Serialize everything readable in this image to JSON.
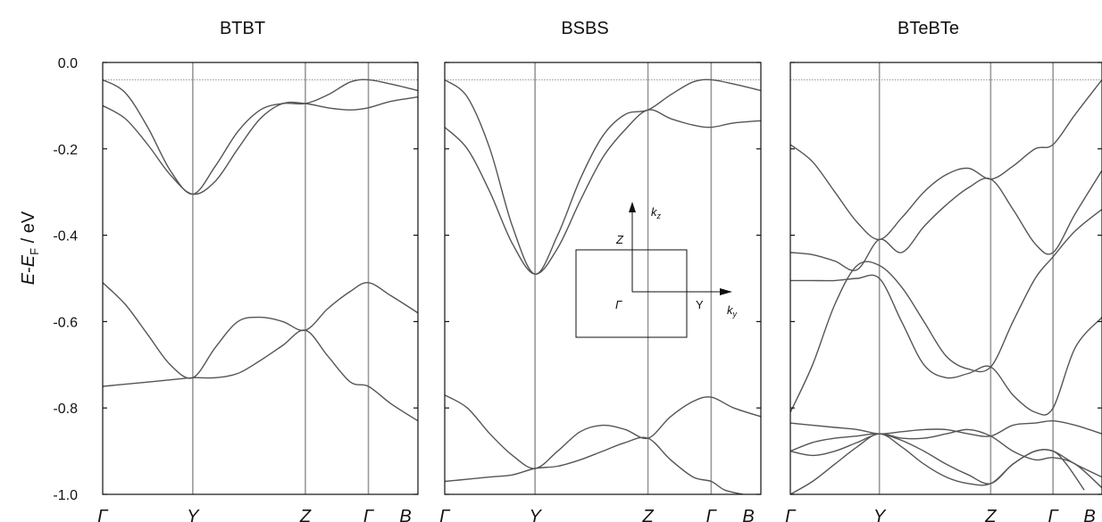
{
  "chart_data": [
    {
      "type": "line",
      "title": "BTBT",
      "ylim": [
        -1.0,
        0.0
      ],
      "yticks": [
        "0.0",
        "-0.2",
        "-0.4",
        "-0.6",
        "-0.8",
        "-1.0"
      ],
      "ytick_values": [
        0.0,
        -0.2,
        -0.4,
        -0.6,
        -0.8,
        -1.0
      ],
      "kpoints": [
        {
          "label": "Γ",
          "k": 0.0
        },
        {
          "label": "Y",
          "k": 1.0
        },
        {
          "label": "Z",
          "k": 2.25
        },
        {
          "label": "Γ",
          "k": 2.95
        },
        {
          "label": "B",
          "k": 3.5
        }
      ],
      "reference_level": -0.04,
      "series": [
        {
          "k": [
            0,
            0.25,
            0.5,
            0.75,
            1.0,
            1.25,
            1.5,
            1.75,
            2.0,
            2.25,
            2.5,
            2.75,
            2.95,
            3.2,
            3.5
          ],
          "E": [
            -0.04,
            -0.07,
            -0.15,
            -0.25,
            -0.305,
            -0.24,
            -0.16,
            -0.11,
            -0.095,
            -0.095,
            -0.075,
            -0.045,
            -0.04,
            -0.05,
            -0.065
          ]
        },
        {
          "k": [
            0,
            0.25,
            0.5,
            0.75,
            1.0,
            1.25,
            1.5,
            1.75,
            2.0,
            2.25,
            2.5,
            2.75,
            2.95,
            3.2,
            3.5
          ],
          "E": [
            -0.1,
            -0.13,
            -0.19,
            -0.26,
            -0.305,
            -0.275,
            -0.2,
            -0.13,
            -0.095,
            -0.095,
            -0.105,
            -0.11,
            -0.105,
            -0.09,
            -0.08
          ]
        },
        {
          "k": [
            0,
            0.25,
            0.5,
            0.75,
            1.0,
            1.25,
            1.5,
            1.75,
            2.0,
            2.25,
            2.5,
            2.75,
            2.95,
            3.2,
            3.5
          ],
          "E": [
            -0.51,
            -0.56,
            -0.63,
            -0.7,
            -0.73,
            -0.66,
            -0.6,
            -0.59,
            -0.6,
            -0.62,
            -0.57,
            -0.53,
            -0.51,
            -0.54,
            -0.58
          ]
        },
        {
          "k": [
            0,
            0.25,
            0.5,
            0.75,
            1.0,
            1.25,
            1.5,
            1.75,
            2.0,
            2.25,
            2.5,
            2.75,
            2.95,
            3.2,
            3.5
          ],
          "E": [
            -0.75,
            -0.745,
            -0.74,
            -0.735,
            -0.73,
            -0.73,
            -0.72,
            -0.69,
            -0.655,
            -0.62,
            -0.68,
            -0.74,
            -0.75,
            -0.79,
            -0.83
          ]
        }
      ]
    },
    {
      "type": "line",
      "title": "BSBS",
      "ylim": [
        -1.0,
        0.0
      ],
      "yticks": [
        "0.0",
        "-0.2",
        "-0.4",
        "-0.6",
        "-0.8",
        "-1.0"
      ],
      "ytick_values": [
        0.0,
        -0.2,
        -0.4,
        -0.6,
        -0.8,
        -1.0
      ],
      "kpoints": [
        {
          "label": "Γ",
          "k": 0.0
        },
        {
          "label": "Y",
          "k": 1.0
        },
        {
          "label": "Z",
          "k": 2.25
        },
        {
          "label": "Γ",
          "k": 2.95
        },
        {
          "label": "B",
          "k": 3.5
        }
      ],
      "reference_level": -0.04,
      "series": [
        {
          "k": [
            0,
            0.25,
            0.5,
            0.75,
            1.0,
            1.25,
            1.5,
            1.75,
            2.0,
            2.25,
            2.5,
            2.75,
            2.95,
            3.2,
            3.5
          ],
          "E": [
            -0.04,
            -0.08,
            -0.2,
            -0.38,
            -0.49,
            -0.4,
            -0.27,
            -0.17,
            -0.12,
            -0.11,
            -0.075,
            -0.045,
            -0.04,
            -0.05,
            -0.065
          ]
        },
        {
          "k": [
            0,
            0.25,
            0.5,
            0.75,
            1.0,
            1.25,
            1.5,
            1.75,
            2.0,
            2.25,
            2.5,
            2.75,
            2.95,
            3.2,
            3.5
          ],
          "E": [
            -0.15,
            -0.2,
            -0.3,
            -0.42,
            -0.49,
            -0.43,
            -0.32,
            -0.22,
            -0.155,
            -0.11,
            -0.13,
            -0.145,
            -0.15,
            -0.14,
            -0.135
          ]
        },
        {
          "k": [
            0,
            0.25,
            0.5,
            0.75,
            1.0,
            1.25,
            1.5,
            1.75,
            2.0,
            2.25,
            2.5,
            2.75,
            2.95,
            3.2,
            3.5
          ],
          "E": [
            -0.77,
            -0.8,
            -0.86,
            -0.91,
            -0.94,
            -0.9,
            -0.855,
            -0.84,
            -0.85,
            -0.87,
            -0.82,
            -0.785,
            -0.775,
            -0.8,
            -0.82
          ]
        },
        {
          "k": [
            0,
            0.25,
            0.5,
            0.75,
            1.0,
            1.25,
            1.5,
            1.75,
            2.0,
            2.25,
            2.5,
            2.75,
            2.95,
            3.1,
            3.3
          ],
          "E": [
            -0.97,
            -0.965,
            -0.96,
            -0.955,
            -0.94,
            -0.935,
            -0.92,
            -0.9,
            -0.88,
            -0.87,
            -0.92,
            -0.96,
            -0.97,
            -0.99,
            -1.0
          ]
        }
      ],
      "inset": {
        "kz_label": "k",
        "kz_sub": "z",
        "ky_label": "k",
        "ky_sub": "y",
        "z_label": "Z",
        "gamma_label": "Γ",
        "y_label": "Y"
      }
    },
    {
      "type": "line",
      "title": "BTeBTe",
      "ylim": [
        -1.0,
        0.0
      ],
      "yticks": [
        "0.0",
        "-0.2",
        "-0.4",
        "-0.6",
        "-0.8",
        "-1.0"
      ],
      "ytick_values": [
        0.0,
        -0.2,
        -0.4,
        -0.6,
        -0.8,
        -1.0
      ],
      "kpoints": [
        {
          "label": "Γ",
          "k": 0.0
        },
        {
          "label": "Y",
          "k": 1.0
        },
        {
          "label": "Z",
          "k": 2.25
        },
        {
          "label": "Γ",
          "k": 2.95
        },
        {
          "label": "B",
          "k": 3.5
        }
      ],
      "reference_level": -0.04,
      "series": [
        {
          "k": [
            0,
            0.25,
            0.5,
            0.75,
            1.0,
            1.25,
            1.5,
            1.75,
            2.0,
            2.25,
            2.5,
            2.75,
            2.95,
            3.2,
            3.5
          ],
          "E": [
            -0.19,
            -0.23,
            -0.3,
            -0.37,
            -0.41,
            -0.36,
            -0.3,
            -0.26,
            -0.245,
            -0.27,
            -0.24,
            -0.2,
            -0.19,
            -0.12,
            -0.04
          ]
        },
        {
          "k": [
            0,
            0.25,
            0.5,
            0.75,
            1.0,
            1.25,
            1.5,
            1.75,
            2.0,
            2.25,
            2.5,
            2.75,
            2.95,
            3.2,
            3.5
          ],
          "E": [
            -0.44,
            -0.445,
            -0.46,
            -0.48,
            -0.41,
            -0.44,
            -0.38,
            -0.33,
            -0.29,
            -0.27,
            -0.34,
            -0.42,
            -0.44,
            -0.35,
            -0.25
          ]
        },
        {
          "k": [
            0,
            0.25,
            0.5,
            0.75,
            1.0,
            1.25,
            1.5,
            1.75,
            2.0,
            2.25,
            2.5,
            2.75,
            2.95,
            3.2,
            3.5
          ],
          "E": [
            -0.81,
            -0.7,
            -0.56,
            -0.47,
            -0.47,
            -0.52,
            -0.6,
            -0.68,
            -0.71,
            -0.705,
            -0.6,
            -0.5,
            -0.45,
            -0.39,
            -0.34
          ]
        },
        {
          "k": [
            0,
            0.25,
            0.5,
            0.75,
            1.0,
            1.25,
            1.5,
            1.75,
            2.0,
            2.25,
            2.5,
            2.75,
            2.95,
            3.2,
            3.5
          ],
          "E": [
            -0.505,
            -0.505,
            -0.505,
            -0.5,
            -0.5,
            -0.6,
            -0.7,
            -0.73,
            -0.72,
            -0.705,
            -0.77,
            -0.81,
            -0.8,
            -0.66,
            -0.59
          ]
        },
        {
          "k": [
            0,
            0.25,
            0.5,
            0.75,
            1.0,
            1.25,
            1.5,
            1.75,
            2.0,
            2.25,
            2.5,
            2.75,
            2.95,
            3.2,
            3.5
          ],
          "E": [
            -0.835,
            -0.84,
            -0.845,
            -0.85,
            -0.86,
            -0.855,
            -0.85,
            -0.85,
            -0.86,
            -0.865,
            -0.84,
            -0.835,
            -0.83,
            -0.84,
            -0.86
          ]
        },
        {
          "k": [
            0,
            0.25,
            0.5,
            0.75,
            1.0,
            1.25,
            1.5,
            1.75,
            2.0,
            2.25,
            2.5,
            2.75,
            2.95,
            3.2,
            3.5
          ],
          "E": [
            -0.9,
            -0.88,
            -0.87,
            -0.865,
            -0.86,
            -0.875,
            -0.9,
            -0.93,
            -0.955,
            -0.975,
            -0.93,
            -0.9,
            -0.9,
            -0.93,
            -0.96
          ]
        },
        {
          "k": [
            0,
            0.25,
            0.5,
            0.75,
            1.0,
            1.25,
            1.5,
            1.75,
            2.0,
            2.25,
            2.5,
            2.75,
            2.95,
            3.2,
            3.5
          ],
          "E": [
            -0.9,
            -0.91,
            -0.9,
            -0.88,
            -0.86,
            -0.87,
            -0.87,
            -0.86,
            -0.85,
            -0.865,
            -0.9,
            -0.92,
            -0.915,
            -0.93,
            -0.985
          ]
        },
        {
          "k": [
            0,
            0.25,
            0.5,
            0.75,
            1.0,
            1.25,
            1.5,
            1.75,
            2.0,
            2.25,
            2.5,
            2.75,
            2.95,
            3.1,
            3.3
          ],
          "E": [
            -1.0,
            -0.97,
            -0.93,
            -0.89,
            -0.86,
            -0.89,
            -0.93,
            -0.96,
            -0.975,
            -0.975,
            -0.93,
            -0.9,
            -0.9,
            -0.93,
            -0.99
          ]
        }
      ]
    }
  ],
  "ylabel": {
    "e": "E",
    "dash": "-",
    "ef": "E",
    "sub": "F",
    "unit": " / eV"
  },
  "colors": {
    "band": "#555555",
    "kline": "#999999",
    "frame": "#111111",
    "reference": "#777777"
  }
}
